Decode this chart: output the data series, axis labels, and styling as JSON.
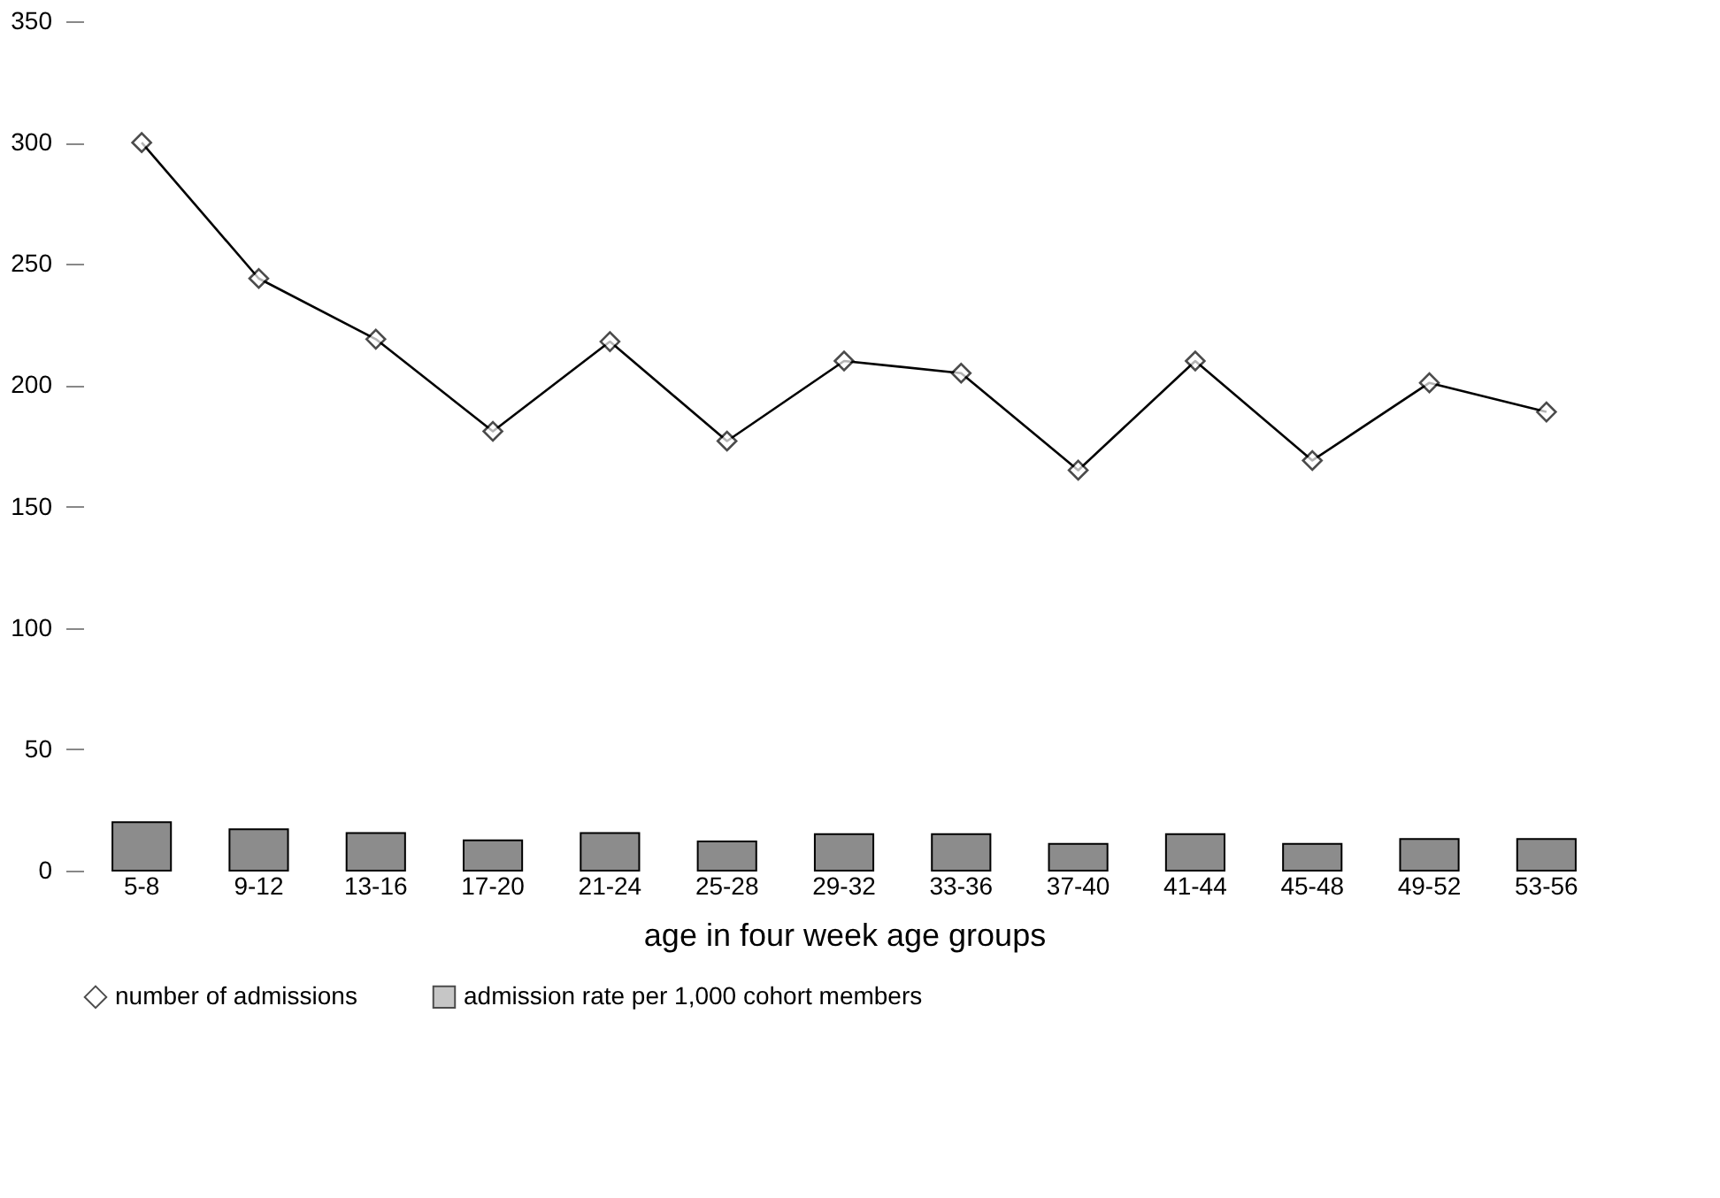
{
  "chart_data": {
    "type": "line",
    "xlabel": "age in four week age groups",
    "categories": [
      "5-8",
      "9-12",
      "13-16",
      "17-20",
      "21-24",
      "25-28",
      "29-32",
      "33-36",
      "37-40",
      "41-44",
      "45-48",
      "49-52",
      "53-56"
    ],
    "series": [
      {
        "name": "number of admissions",
        "color": "#000000",
        "marker": "diamond",
        "values": [
          300,
          244,
          219,
          181,
          218,
          177,
          210,
          205,
          165,
          210,
          169,
          201,
          189
        ]
      },
      {
        "name": "admission rate per 1,000 cohort members",
        "type": "bar",
        "color": "#8c8c8c",
        "values": [
          20,
          17,
          15.5,
          12.5,
          15.5,
          12,
          15,
          15,
          11,
          15,
          11,
          13,
          13
        ]
      }
    ],
    "ylim": [
      0,
      350
    ],
    "yticks": [
      0,
      50,
      100,
      150,
      200,
      250,
      300,
      350
    ],
    "grid": false,
    "legend": "bottom"
  }
}
